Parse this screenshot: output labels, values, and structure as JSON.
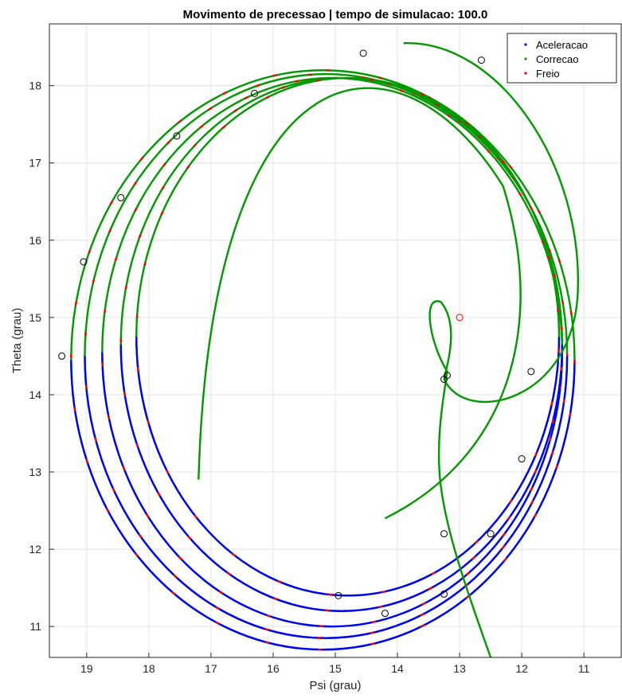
{
  "chart_data": {
    "type": "line",
    "title": "Movimento de precessao | tempo de simulacao: 100.0",
    "xlabel": "Psi (grau)",
    "ylabel": "Theta (grau)",
    "x_reversed": true,
    "xlim": [
      10.4,
      19.6
    ],
    "ylim": [
      10.6,
      18.8
    ],
    "xticks": [
      "19",
      "18",
      "17",
      "16",
      "15",
      "14",
      "13",
      "12",
      "11"
    ],
    "yticks": [
      "11",
      "12",
      "13",
      "14",
      "15",
      "16",
      "17",
      "18"
    ],
    "grid": true,
    "legend_position": "top-right",
    "legend": [
      {
        "name": "Aceleracao",
        "color": "#0000ff"
      },
      {
        "name": "Correcao",
        "color": "#009900"
      },
      {
        "name": "Freio",
        "color": "#ff0000"
      }
    ],
    "series_colors": {
      "aceleracao": "#0000ff",
      "correcao": "#009900",
      "freio": "#ff0000"
    },
    "trajectory_loops": [
      {
        "cx": 15.2,
        "cy": 14.45,
        "rx": 4.05,
        "ry": 3.75
      },
      {
        "cx": 15.15,
        "cy": 14.5,
        "rx": 3.88,
        "ry": 3.65
      },
      {
        "cx": 15.05,
        "cy": 14.55,
        "rx": 3.7,
        "ry": 3.55
      },
      {
        "cx": 14.9,
        "cy": 14.65,
        "rx": 3.55,
        "ry": 3.45
      },
      {
        "cx": 14.8,
        "cy": 14.75,
        "rx": 3.4,
        "ry": 3.35
      }
    ],
    "marker_points": [
      {
        "x": 19.4,
        "y": 14.5
      },
      {
        "x": 19.05,
        "y": 15.72
      },
      {
        "x": 18.45,
        "y": 16.55
      },
      {
        "x": 17.55,
        "y": 17.35
      },
      {
        "x": 16.3,
        "y": 17.9
      },
      {
        "x": 14.55,
        "y": 18.42
      },
      {
        "x": 12.65,
        "y": 18.33
      },
      {
        "x": 11.85,
        "y": 14.3
      },
      {
        "x": 12.0,
        "y": 13.17
      },
      {
        "x": 12.5,
        "y": 12.2
      },
      {
        "x": 13.25,
        "y": 11.42
      },
      {
        "x": 14.2,
        "y": 11.17
      },
      {
        "x": 14.95,
        "y": 11.4
      },
      {
        "x": 13.25,
        "y": 12.2
      },
      {
        "x": 13.25,
        "y": 14.2
      },
      {
        "x": 13.2,
        "y": 14.25
      }
    ],
    "target_point": {
      "x": 13.0,
      "y": 15.0,
      "color": "#ff0000"
    }
  }
}
